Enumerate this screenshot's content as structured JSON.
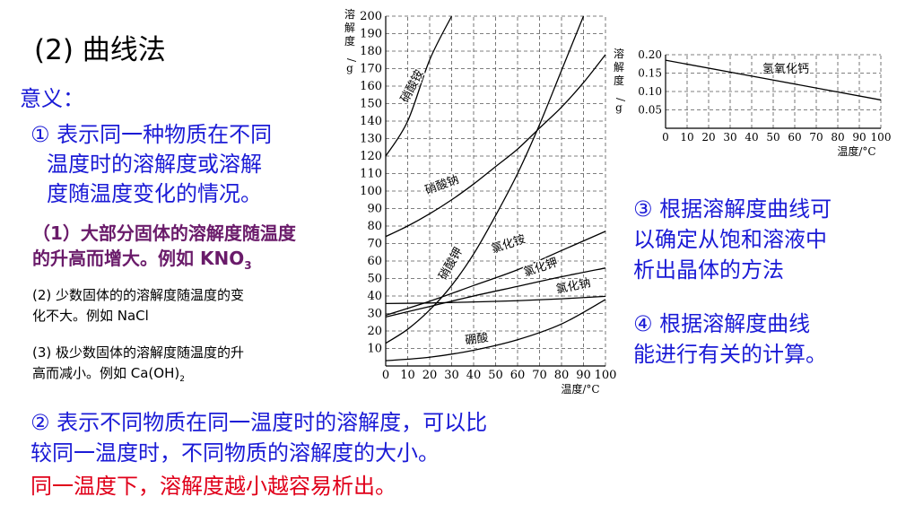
{
  "page": {
    "title": "(2) 曲线法",
    "meaning_label": "意义：",
    "point1": [
      "① 表示同一种物质在不同",
      "温度时的溶解度或溶解",
      "度随温度变化的情况。"
    ],
    "sub1": [
      "（1）大部分固体的溶解度随温度",
      "的升高而增大。例如  KNO"
    ],
    "sub1_subscript": "3",
    "sub2": [
      "(2) 少数固体的的溶解度随温度的变",
      "化不大。例如   NaCl"
    ],
    "sub3": [
      "(3)  极少数固体的溶解度随温度的升",
      "高而减小。例如  Ca(OH)"
    ],
    "sub3_subscript": "2",
    "point2": [
      "② 表示不同物质在同一温度时的溶解度，可以比",
      "较同一温度时，不同物质的溶解度的大小。"
    ],
    "red_note": "同一温度下，溶解度越小越容易析出。",
    "point3": [
      "③ 根据溶解度曲线可",
      "以确定从饱和溶液中",
      "析出晶体的方法"
    ],
    "point4": [
      "④ 根据溶解度曲线",
      "能进行有关的计算。"
    ]
  },
  "chart_data": [
    {
      "type": "line",
      "title": "",
      "xlabel": "温度/°C",
      "ylabel": "溶解度/g",
      "xlim": [
        0,
        100
      ],
      "ylim": [
        0,
        200
      ],
      "x_ticks": [
        "0",
        "10",
        "20",
        "30",
        "40",
        "50",
        "60",
        "70",
        "80",
        "90",
        "100"
      ],
      "y_ticks": [
        "10",
        "20",
        "30",
        "40",
        "50",
        "60",
        "70",
        "80",
        "90",
        "100",
        "110",
        "120",
        "130",
        "140",
        "150",
        "160",
        "170",
        "180",
        "190",
        "200"
      ],
      "grid": true,
      "series": [
        {
          "name": "硝酸铵",
          "x": [
            0,
            10,
            20,
            30
          ],
          "y": [
            120,
            140,
            175,
            200
          ]
        },
        {
          "name": "硝酸钠",
          "x": [
            0,
            10,
            20,
            30,
            40,
            50,
            60,
            70,
            80,
            90,
            100
          ],
          "y": [
            74,
            80,
            87,
            95,
            104,
            114,
            124,
            136,
            148,
            162,
            178
          ]
        },
        {
          "name": "硝酸钾",
          "x": [
            0,
            10,
            20,
            30,
            40,
            50,
            60,
            70,
            80,
            90
          ],
          "y": [
            13,
            21,
            32,
            46,
            64,
            86,
            110,
            138,
            169,
            200
          ]
        },
        {
          "name": "氯化铵",
          "x": [
            0,
            20,
            40,
            60,
            80,
            100
          ],
          "y": [
            29,
            37,
            46,
            55,
            66,
            77
          ]
        },
        {
          "name": "氯化钾",
          "x": [
            0,
            20,
            40,
            60,
            80,
            100
          ],
          "y": [
            28,
            34,
            40,
            45.5,
            51,
            56
          ]
        },
        {
          "name": "氯化钠",
          "x": [
            0,
            20,
            40,
            60,
            80,
            100
          ],
          "y": [
            35.7,
            36,
            36.6,
            37.3,
            38.4,
            39.8
          ]
        },
        {
          "name": "硼酸",
          "x": [
            0,
            20,
            40,
            60,
            80,
            100
          ],
          "y": [
            3,
            5,
            9,
            15,
            24,
            38
          ]
        }
      ]
    },
    {
      "type": "line",
      "title": "",
      "xlabel": "温度/°C",
      "ylabel": "溶解度/g",
      "xlim": [
        0,
        100
      ],
      "ylim": [
        0,
        0.2
      ],
      "x_ticks": [
        "0",
        "10",
        "20",
        "30",
        "40",
        "50",
        "60",
        "70",
        "80",
        "90",
        "100"
      ],
      "y_ticks": [
        "0.05",
        "0.10",
        "0.15",
        "0.20"
      ],
      "grid": true,
      "series": [
        {
          "name": "氢氧化钙",
          "x": [
            0,
            100
          ],
          "y": [
            0.185,
            0.077
          ]
        }
      ]
    }
  ]
}
